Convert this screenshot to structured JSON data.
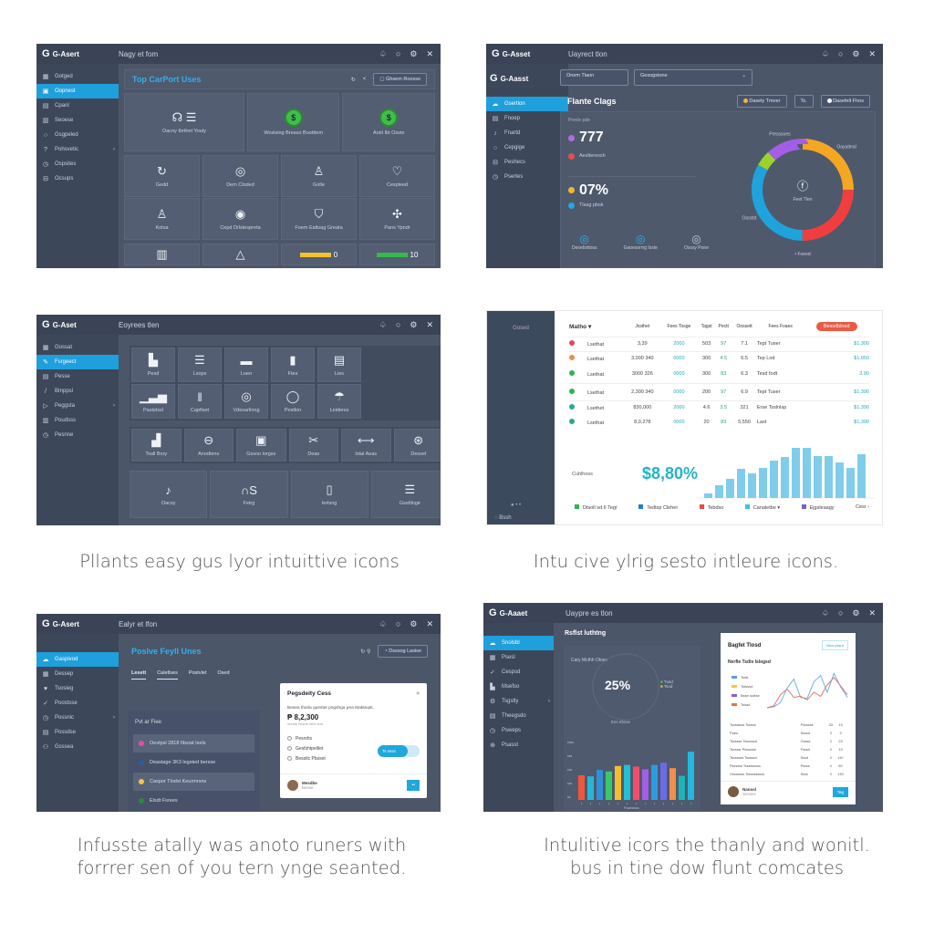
{
  "colors": {
    "accent": "#1f9fdc",
    "sidebar": "#3c4759",
    "panel": "#4b5669",
    "header": "#3a4456"
  },
  "header_icons": [
    "bell-icon",
    "circle-icon",
    "gear-icon",
    "close-icon"
  ],
  "p1": {
    "brand": "G-Asert",
    "title": "Nagy et fom",
    "sidebar": [
      {
        "icon": "▦",
        "label": "Gotged"
      },
      {
        "icon": "▣",
        "label": "Oopnest",
        "active": true
      },
      {
        "icon": "▤",
        "label": "Cpanl"
      },
      {
        "icon": "▥",
        "label": "Seoese"
      },
      {
        "icon": "○",
        "label": "Gsgpeled"
      },
      {
        "icon": "?",
        "label": "Pohsvetic",
        "chevron": true
      },
      {
        "icon": "◷",
        "label": "Ospsites"
      },
      {
        "icon": "⊟",
        "label": "Ocsups"
      }
    ],
    "section_title": "Top CarPort Uses",
    "nav_back": "<",
    "action_button": "Ghsem Roosso",
    "row1": [
      {
        "icon": "☊ ☰",
        "label": "Oacny Ibrthet Youty"
      },
      {
        "icon": "green",
        "label": "Woslsing Breaso Bootttem"
      },
      {
        "icon": "green",
        "label": "Arsit Ibt Osste"
      }
    ],
    "row2": [
      {
        "icon": "↻",
        "label": "Gedd"
      },
      {
        "icon": "◎",
        "label": "Dem Cloded"
      },
      {
        "icon": "♙",
        "label": "Gotle"
      },
      {
        "icon": "♡",
        "label": "Cespleed"
      }
    ],
    "row3": [
      {
        "icon": "♙",
        "label": "Kotsa"
      },
      {
        "icon": "◉",
        "label": "Cepd Drlstespreta"
      },
      {
        "icon": "⛉",
        "label": "Foem Ealtsag Greata"
      },
      {
        "icon": "✣",
        "label": "Pans Ypndr"
      }
    ],
    "row4": [
      {
        "icon": "▥",
        "label": ""
      },
      {
        "icon": "△",
        "label": ""
      },
      {
        "icon": "bar-yellow",
        "label": "0"
      },
      {
        "icon": "bar-green",
        "label": "10"
      }
    ]
  },
  "p2": {
    "brand": "G-Asset",
    "title": "Uayrect tlon",
    "inner_brand": "G-Aasst",
    "filter_input": "Onem Tlaon",
    "filter_select": "Gesogstone",
    "sidebar": [
      {
        "icon": "☁",
        "label": "Gsertlon",
        "active": true
      },
      {
        "icon": "▤",
        "label": "Fnoep"
      },
      {
        "icon": "♪",
        "label": "Fnartd"
      },
      {
        "icon": "○",
        "label": "Cepgige",
        "chevron": true
      },
      {
        "icon": "⊟",
        "label": "Peshecs"
      },
      {
        "icon": "◷",
        "label": "Psertes"
      }
    ],
    "section_title": "Flante Clags",
    "btn1": "Dasely Tmoer",
    "btn2": "Ts.",
    "btn3": "Dasefelt Fhos",
    "card_label": "Precle pde",
    "stats": [
      {
        "color": "#b36be0",
        "value": "777",
        "big": true
      },
      {
        "color": "#ef4a4a",
        "value": "Aeslteressh"
      },
      {
        "color": "#f4b72a",
        "value": "07%",
        "big": true
      },
      {
        "color": "#23a8e0",
        "value": "Tlasg pbsk"
      }
    ],
    "icons": [
      {
        "label": "Desebsttoss"
      },
      {
        "label": "Gaoesorrrg Isste"
      },
      {
        "label": "Osssy Pone"
      }
    ],
    "donut": {
      "center": "Feet Tlen",
      "slices": [
        {
          "label": "Oayatteal",
          "value": 25,
          "color": "#f5a623"
        },
        {
          "label": "",
          "value": 25,
          "color": "#f03e3e"
        },
        {
          "label": "Oasstd",
          "value": 33,
          "color": "#1fa3dc"
        },
        {
          "label": "",
          "value": 5,
          "color": "#9bd22c"
        },
        {
          "label": "Presssoes",
          "value": 12,
          "color": "#a45ee5"
        }
      ],
      "footer": "Foeed"
    }
  },
  "p3": {
    "brand": "G-Aset",
    "title": "Eoyrees tlen",
    "sidebar": [
      {
        "icon": "▦",
        "label": "Gossat"
      },
      {
        "icon": "✎",
        "label": "Fsrgeect",
        "active": true
      },
      {
        "icon": "▤",
        "label": "Pesse"
      },
      {
        "icon": "/",
        "label": "Bmppsl"
      },
      {
        "icon": "▷",
        "label": "Peggsta",
        "chevron": true
      },
      {
        "icon": "▥",
        "label": "Poudsss"
      },
      {
        "icon": "◷",
        "label": "Pesnne"
      }
    ],
    "row1": [
      {
        "icon": "▙",
        "label": "Pesd"
      },
      {
        "icon": "☰",
        "label": "Lsops"
      },
      {
        "icon": "▬",
        "label": "Loeo"
      },
      {
        "icon": "▮",
        "label": "Ftes"
      },
      {
        "icon": "▤",
        "label": "Lies"
      }
    ],
    "row2": [
      {
        "icon": "▁▃▅",
        "label": "Pastelssl"
      },
      {
        "icon": "‖",
        "label": "Capfiset"
      },
      {
        "icon": "◎",
        "label": "Vdesarlinng"
      },
      {
        "icon": "◯",
        "label": "Pestlon"
      },
      {
        "icon": "☂",
        "label": "Leiderss"
      }
    ],
    "row3": [
      {
        "icon": "▟",
        "label": "Tsall Bory"
      },
      {
        "icon": "⊖",
        "label": "Anodtens"
      },
      {
        "icon": "▣",
        "label": "Gssoo lorgss"
      },
      {
        "icon": "✂",
        "label": "Deas"
      },
      {
        "icon": "⟷",
        "label": "Istal Aeas"
      },
      {
        "icon": "⊛",
        "label": "Dessel"
      }
    ],
    "row4": [
      {
        "icon": "♪",
        "label": "Oacsy"
      },
      {
        "icon": "∩S",
        "label": "Fetrg"
      },
      {
        "icon": "▯",
        "label": "Ierlsng"
      },
      {
        "icon": "☰",
        "label": "Gsetllnge"
      }
    ]
  },
  "caption1": "Pllants easy gus lyor intuittive icons",
  "caption2": "Intu cive ylrig sesto intleure icons.",
  "p4": {
    "side_label": "Gosed",
    "side_footer": "Bssh",
    "columns": [
      "Matho ▾",
      "Jssthet",
      "Fees Tosge",
      "Tagst",
      "Pectt",
      "Oossett",
      "Fees Foaes"
    ],
    "action": "Bessdblned",
    "rows": [
      {
        "color": "#e24b4b",
        "name": "Lsethat",
        "a": "3,39",
        "b": "2000",
        "c": "503",
        "d": "97",
        "e": "7.1",
        "f": "Tept Tuser",
        "g": "$1,300"
      },
      {
        "color": "#e8914a",
        "name": "Lsethat",
        "a": "3,000 340",
        "b": "0000",
        "c": "300",
        "d": "4.5",
        "e": "6.5",
        "f": "Tep Lod",
        "g": "$1,050"
      },
      {
        "color": "#2cb35a",
        "name": "Lsethat",
        "a": "3000 326",
        "b": "0000",
        "c": "300",
        "d": "83",
        "e": "6.3",
        "f": "Tesd fodt",
        "g": "3.90"
      },
      {
        "color": "#2cb35a",
        "name": "Lsethat",
        "a": "2,300 340",
        "b": "0000",
        "c": "200",
        "d": "97",
        "e": "6.9",
        "f": "Tept Tuser",
        "g": "$1,390"
      },
      {
        "color": "#27a98a",
        "name": "Lsethet",
        "a": "830,000",
        "b": "2000",
        "c": "4.6",
        "d": "3.5",
        "e": "321",
        "f": "Erse Tsslnlsp",
        "g": "$1,390"
      },
      {
        "color": "#27a98a",
        "name": "Lsethat",
        "a": "8,0,278",
        "b": "0000",
        "c": "20",
        "d": "83",
        "e": "5,550",
        "f": "Last",
        "g": "$1,390"
      }
    ],
    "kpi_label": "Cuhlhoss",
    "kpi_value": "$8,80%",
    "bars": [
      5,
      14,
      21,
      32,
      27,
      33,
      41,
      45,
      55,
      55,
      46,
      46,
      39,
      33,
      48
    ],
    "legend": [
      {
        "color": "#2cb35a",
        "label": "Dtsoll sd.6 Tegr"
      },
      {
        "color": "#1f7fd0",
        "label": "Tedtsp Cleher"
      },
      {
        "color": "#e24b4b",
        "label": "Tebdso"
      },
      {
        "color": "#35c3e0",
        "label": "Canaletbe ▾"
      },
      {
        "color": "#7a5fc8",
        "label": "Ejgsleaagy"
      }
    ],
    "legend_more": "Cesr ›"
  },
  "p5": {
    "brand": "G-Asert",
    "title": "Ealyr et lfon",
    "sidebar": [
      {
        "icon": "☁",
        "label": "Gaspivod",
        "active": true
      },
      {
        "icon": "▦",
        "label": "Dessep"
      },
      {
        "icon": "♥",
        "label": "Tsosieg"
      },
      {
        "icon": "✓",
        "label": "Poostsse"
      },
      {
        "icon": "◷",
        "label": "Possnic",
        "chevron": true
      },
      {
        "icon": "▤",
        "label": "Possdse"
      },
      {
        "icon": "⚇",
        "label": "Gsssea"
      }
    ],
    "section_title": "Poslve Feyll Unes",
    "action_button": "Dsssog Lasise",
    "tabs": [
      "Lesett",
      "Caletlses",
      "Postvlet",
      "Osed"
    ],
    "list_title": "Pvt ar Fiee",
    "list": [
      {
        "color": "#e84aa8",
        "label": "Oestpsl 2818 Iltsoat Isels",
        "hl": true
      },
      {
        "color": "#2e5c9c",
        "label": "Deastage 3K3 legsted bersse"
      },
      {
        "color": "#f5c63a",
        "label": "Caspor Tlodst Keurmrsns",
        "hl": true
      },
      {
        "color": "#2a8a3a",
        "label": "Elsdt Fsrees"
      }
    ],
    "modal": {
      "title": "Pegsdeity Cess",
      "close": "×",
      "desc": "Besea tfoela questet pngshga pea Makteqst.",
      "value": "₱ 8,2,300",
      "sub": "oreste bsshe sets snd",
      "options": [
        "Pesrshs",
        "Gesfshtpelilet",
        "Besstlc Pbsset"
      ],
      "toggle": "Ts ssss",
      "user": "Mesdbe",
      "user_sub": "Besse",
      "button": "••"
    }
  },
  "p6": {
    "brand": "G-Aaaet",
    "title": "Uaypre es tlon",
    "sidebar": [
      {
        "icon": "☁",
        "label": "Snolsbl",
        "active": true
      },
      {
        "icon": "▦",
        "label": "Psesl"
      },
      {
        "icon": "✓",
        "label": "Cespsd"
      },
      {
        "icon": "▙",
        "label": "Msefso"
      },
      {
        "icon": "⚙",
        "label": "Tsgstly",
        "chevron": true
      },
      {
        "icon": "▤",
        "label": "Theegsdo"
      },
      {
        "icon": "◷",
        "label": "Psweps"
      },
      {
        "icon": "⊛",
        "label": "Psasst"
      }
    ],
    "section_title": "Rsflst luthtng",
    "gauge": {
      "label": "Cary Mcthh Oloes",
      "value": "25%",
      "legend": [
        "Tusd",
        "Tsod"
      ],
      "footer": "Ess Irbsse"
    },
    "yticks": [
      "ssss",
      "sss",
      "sss",
      "sss",
      "ss"
    ],
    "bars": [
      {
        "v": 45,
        "c": "#f0573a"
      },
      {
        "v": 43,
        "c": "#28b6d8"
      },
      {
        "v": 55,
        "c": "#2f8fd8"
      },
      {
        "v": 52,
        "c": "#3ac96a"
      },
      {
        "v": 62,
        "c": "#f6be2e"
      },
      {
        "v": 64,
        "c": "#21c0d6"
      },
      {
        "v": 61,
        "c": "#f04e6a"
      },
      {
        "v": 56,
        "c": "#a45ee5"
      },
      {
        "v": 64,
        "c": "#2f9ae0"
      },
      {
        "v": 68,
        "c": "#6a6be8"
      },
      {
        "v": 58,
        "c": "#f0904a"
      },
      {
        "v": 44,
        "c": "#1cb5b5"
      },
      {
        "v": 88,
        "c": "#22b8e0"
      }
    ],
    "bars_footer": "Fssessss",
    "card": {
      "title": "Bagfet Tlosd",
      "pill": "Nnw pssrd",
      "subtitle": "Nerfle Tsdiv Islegsd",
      "legend": [
        {
          "color": "#5aa0e0",
          "label": "Tsstt"
        },
        {
          "color": "#f5c63a",
          "label": "Tstsssd"
        },
        {
          "color": "#8a5fd8",
          "label": "Bsse lodtse"
        },
        {
          "color": "#e0734a",
          "label": "Tssad"
        }
      ],
      "series": [
        {
          "color": "#6fb0e6",
          "values": [
            0,
            2,
            10,
            38,
            55,
            20,
            18,
            50,
            62,
            30,
            66,
            40,
            20
          ]
        },
        {
          "color": "#e07a6a",
          "values": [
            0,
            4,
            25,
            36,
            20,
            22,
            15,
            30,
            22,
            44,
            58,
            42,
            25
          ]
        }
      ],
      "rows": [
        [
          "Tsssstsss Tsssss",
          "Pssssse",
          "33",
          "13"
        ],
        [
          "Fsssr",
          "Ssssd",
          "3",
          "3"
        ],
        [
          "Tssssse Tssssssd",
          "Gsssd",
          "3",
          "23"
        ],
        [
          "Tsssssr Psssssst",
          "Fsssd",
          "3",
          "13"
        ],
        [
          "Tsssssss Tsssssd",
          "Sssd",
          "3",
          "110"
        ],
        [
          "Pssssss Tsssssssss",
          "Pssss",
          "4",
          "60"
        ],
        [
          "Osssssss Tssssssssss",
          "Ssss",
          "3",
          "140"
        ]
      ],
      "user": "Nanosl",
      "user_sub": "Sesses",
      "button": "Tag"
    }
  },
  "caption3": [
    "Infusste atally was anoto runers with",
    "forrrer sen of you tern ynge seanted."
  ],
  "caption4": [
    "Intulitive icors the thanly and wonitl.",
    "bus in tine dow flunt comcates"
  ]
}
